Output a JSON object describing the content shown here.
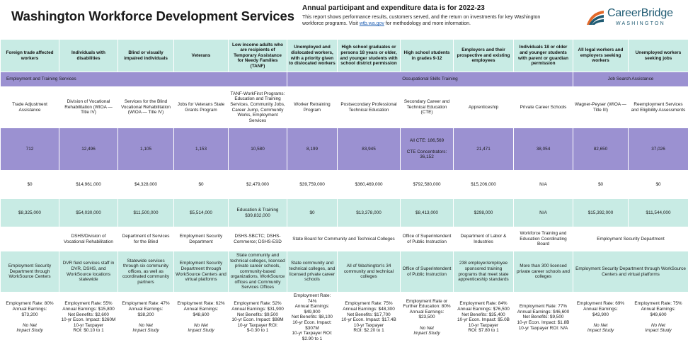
{
  "header": {
    "title": "Washington Workforce Development Services",
    "note_heading": "Annual participant and expenditure data is for 2022-23",
    "note_line_pre": "This report shows performance results, customers served, and the return on investments for key Washington workforce programs. Visit ",
    "note_link": "wtb.wa.gov",
    "note_line_post": " for methodology and more information."
  },
  "logo": {
    "word_a": "Career",
    "word_b": "Bridge",
    "sub": "WASHINGTON",
    "colors": {
      "navy": "#1e5a72",
      "orange": "#e2692a"
    }
  },
  "columns": [
    "Foreign trade affected workers",
    "Individuals with disabilities",
    "Blind or visually impaired individuals",
    "Veterans",
    "Low income adults who are recipients of Temporary Assistance for Needy Families (TANF)",
    "Unemployed and dislocated workers, with a priority given to dislocated workers",
    "High school graduates or persons 18 years or older, and younger students with school district permission",
    "High school students in grades 9-12",
    "Employers and their prospective and existing employees",
    "Individuals 18 or older and younger students with parent or guardian permission",
    "All legal workers and employers seeking workers",
    "Unemployed workers seeking jobs"
  ],
  "categories": {
    "employment_training": "Employment and Training Services",
    "occupational": "Occupational Skills Training",
    "job_search": "Job Search Assistance"
  },
  "programs": [
    "Trade Adjustment Assistance",
    "Division of Vocational Rehabilitation (WIOA — Title IV)",
    "Services for the Blind Vocational Rehabilitation (WIOA — Title IV)",
    "Jobs for Veterans State Grants Program",
    "TANF-WorkFirst Programs: Education and Training Services, Community Jobs, Career Jump, Community Works, Employment Services",
    "Worker Retraining Program",
    "Postsecondary Professional Technical Education",
    "Secondary Career and Technical Education (CTE)",
    "Apprenticeship",
    "Private Career Schools",
    "Wagner-Peyser (WIOA — Title III)",
    "Reemployment Services and Eligibility Assessments"
  ],
  "participants": [
    [
      "712"
    ],
    [
      "12,496"
    ],
    [
      "1,105"
    ],
    [
      "1,153"
    ],
    [
      "10,580"
    ],
    [
      "8,199"
    ],
    [
      "83,945"
    ],
    [
      "All CTE: 186,569",
      "",
      "CTE Concentrators:",
      "36,152"
    ],
    [
      "21,471"
    ],
    [
      "38,054"
    ],
    [
      "82,650"
    ],
    [
      "37,026"
    ]
  ],
  "federal_funds": [
    "$0",
    "$14,961,000",
    "$4,328,000",
    "$0",
    "$2,479,000",
    "$39,759,000",
    "$360,469,000",
    "$792,580,000",
    "$15,206,000",
    "N/A",
    "$0",
    "$0"
  ],
  "state_funds": [
    [
      "$8,325,000"
    ],
    [
      "$54,030,000"
    ],
    [
      "$11,500,000"
    ],
    [
      "$5,514,000"
    ],
    [
      "Education & Training",
      "$39,832,000"
    ],
    [
      "$0"
    ],
    [
      "$13,378,000"
    ],
    [
      "$8,413,000"
    ],
    [
      "$298,000"
    ],
    [
      "N/A"
    ],
    [
      "$15,392,000"
    ],
    [
      "$11,544,000"
    ]
  ],
  "admin": {
    "blank": "",
    "dvr": "DSHS/Division of Vocational Rehabilitation",
    "dsb": "Department of Services for the Blind",
    "esd": "Employment Security Department",
    "tanf": "DSHS-SBCTC; DSHS-Commerce; DSHS-ESD",
    "sbctc": "State Board for Community and Technical Colleges",
    "ospi": "Office of Superintendent of Public Instruction",
    "lni": "Department of Labor & Industries",
    "wtecb": "Workforce Training and Education Coordinating Board",
    "esd_js": "Employment Security Department"
  },
  "delivery": {
    "taa": "Employment Security Department through WorkSource Centers",
    "dvr": "DVR field services staff in DVR, DSHS, and WorkSource locations statewide",
    "dsb": "Statewide services through six community offices, as well as coordinated community partners",
    "vet": "Employment Security Department through WorkSource Centers and virtual platforms",
    "tanf": "State community and technical colleges, licensed private career schools, community-based organizations, WorkSource offices and Community Services Offices",
    "wrt": "State community and technical colleges, and licensed private career schools",
    "ppte": "All of Washington's 34 community and technical colleges",
    "cte": "Office of Superintendent of Public Instruction",
    "app": "238 employer/employee sponsored training programs that meet state apprenticeship standards",
    "pcs": "More than 300 licensed private career schools and colleges",
    "js": "Employment Security Department through WorkSource Centers and virtual platforms"
  },
  "outcomes": [
    [
      "Employment Rate: 80%",
      "Annual Earnings:",
      "$73,200",
      "",
      "@No Net",
      "@Impact Study"
    ],
    [
      "Employment Rate: 55%",
      "Annual Earnings: $15,800",
      "Net Benefits: $2,600",
      "10-yr Econ. Impact: $260M",
      "10-yr Taxpayer",
      "ROI: $0.10 to 1"
    ],
    [
      "Employment Rate: 47%",
      "Annual Earnings:",
      "$38,200",
      "",
      "@No Net",
      "@Impact Study"
    ],
    [
      "Employment Rate: 62%",
      "Annual Earnings:",
      "$48,600",
      "",
      "@No Net",
      "@Impact Study"
    ],
    [
      "Employment Rate: 52%",
      "Annual Earnings: $31,900",
      "Net Benefits: $9,500",
      "10-yr Econ. Impact: $98M",
      "10-yr Taxpayer ROI:",
      "$-0.30 to 1"
    ],
    [
      "Employment Rate: 74%",
      "Annual Earnings:",
      "$49,900",
      "Net Benefits: $8,100",
      "10-yr Econ. Impact:",
      "$307M",
      "10-yr Taxpayer ROI:",
      "$2.90 to 1"
    ],
    [
      "Employment Rate: 75%",
      "Annual Earnings: $48,300",
      "Net Benefits: $17,700",
      "10-yr Econ. Impact: $17.4B",
      "10-yr Taxpayer",
      "ROI: $2.20 to 1"
    ],
    [
      "Employment Rate or",
      "Further Education: 80%",
      "Annual Earnings:",
      "$23,500",
      "",
      "@No Net",
      "@Impact Study"
    ],
    [
      "Employment Rate: 84%",
      "Annual Earnings: $76,500",
      "Net Benefits: $35,400",
      "10-yr Econ. Impact: $5.0B",
      "10-yr Taxpayer",
      "ROI: $7.80 to 1"
    ],
    [
      "Employment Rate: 77%",
      "Annual Earnings: $46,600",
      "Net Benefits: $9,500",
      "10-yr Econ. Impact: $1.8B",
      "10-yr Taxpayer ROI: N/A"
    ],
    [
      "Employment Rate: 69%",
      "Annual Earnings:",
      "$43,900",
      "",
      "@No Net",
      "@Impact Study"
    ],
    [
      "Employment Rate: 75%",
      "Annual Earnings:",
      "$49,600",
      "",
      "@No Net",
      "@Impact Study"
    ]
  ]
}
